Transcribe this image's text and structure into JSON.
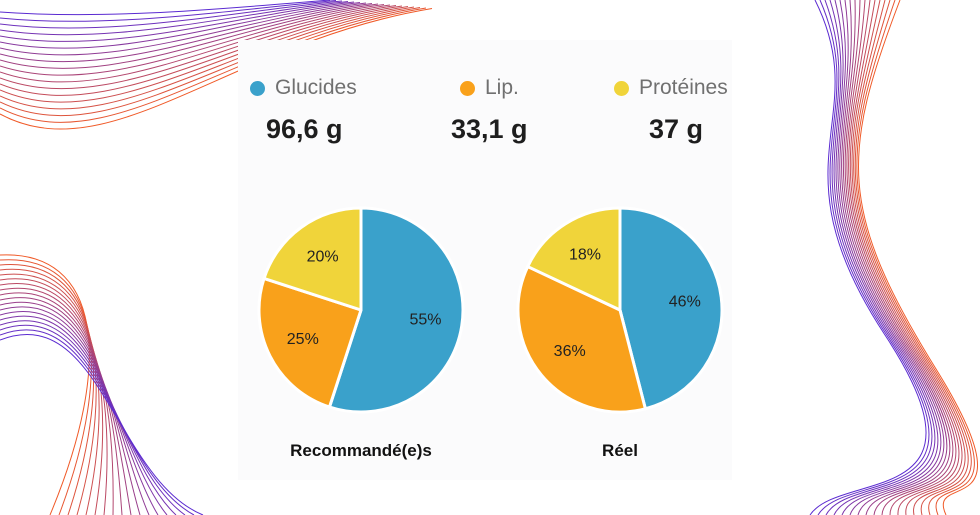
{
  "colors": {
    "glucides": "#3aa1cb",
    "lipides": "#f9a11b",
    "proteines": "#f0d43a",
    "background_card": "#fbfbfc",
    "wave_purple": "#5b2bd1",
    "wave_orange": "#f05a28"
  },
  "legend": {
    "glucides": {
      "label": "Glucides",
      "value": "96,6 g"
    },
    "lipides": {
      "label": "Lip.",
      "value": "33,1 g"
    },
    "proteines": {
      "label": "Protéines",
      "value": "37 g"
    }
  },
  "chart_data": [
    {
      "type": "pie",
      "title": "Recommandé(e)s",
      "categories": [
        "Glucides",
        "Lipides",
        "Protéines"
      ],
      "values": [
        55,
        25,
        20
      ],
      "labels": [
        "55%",
        "25%",
        "20%"
      ]
    },
    {
      "type": "pie",
      "title": "Réel",
      "categories": [
        "Glucides",
        "Lipides",
        "Protéines"
      ],
      "values": [
        46,
        36,
        18
      ],
      "labels": [
        "46%",
        "36%",
        "18%"
      ]
    }
  ]
}
